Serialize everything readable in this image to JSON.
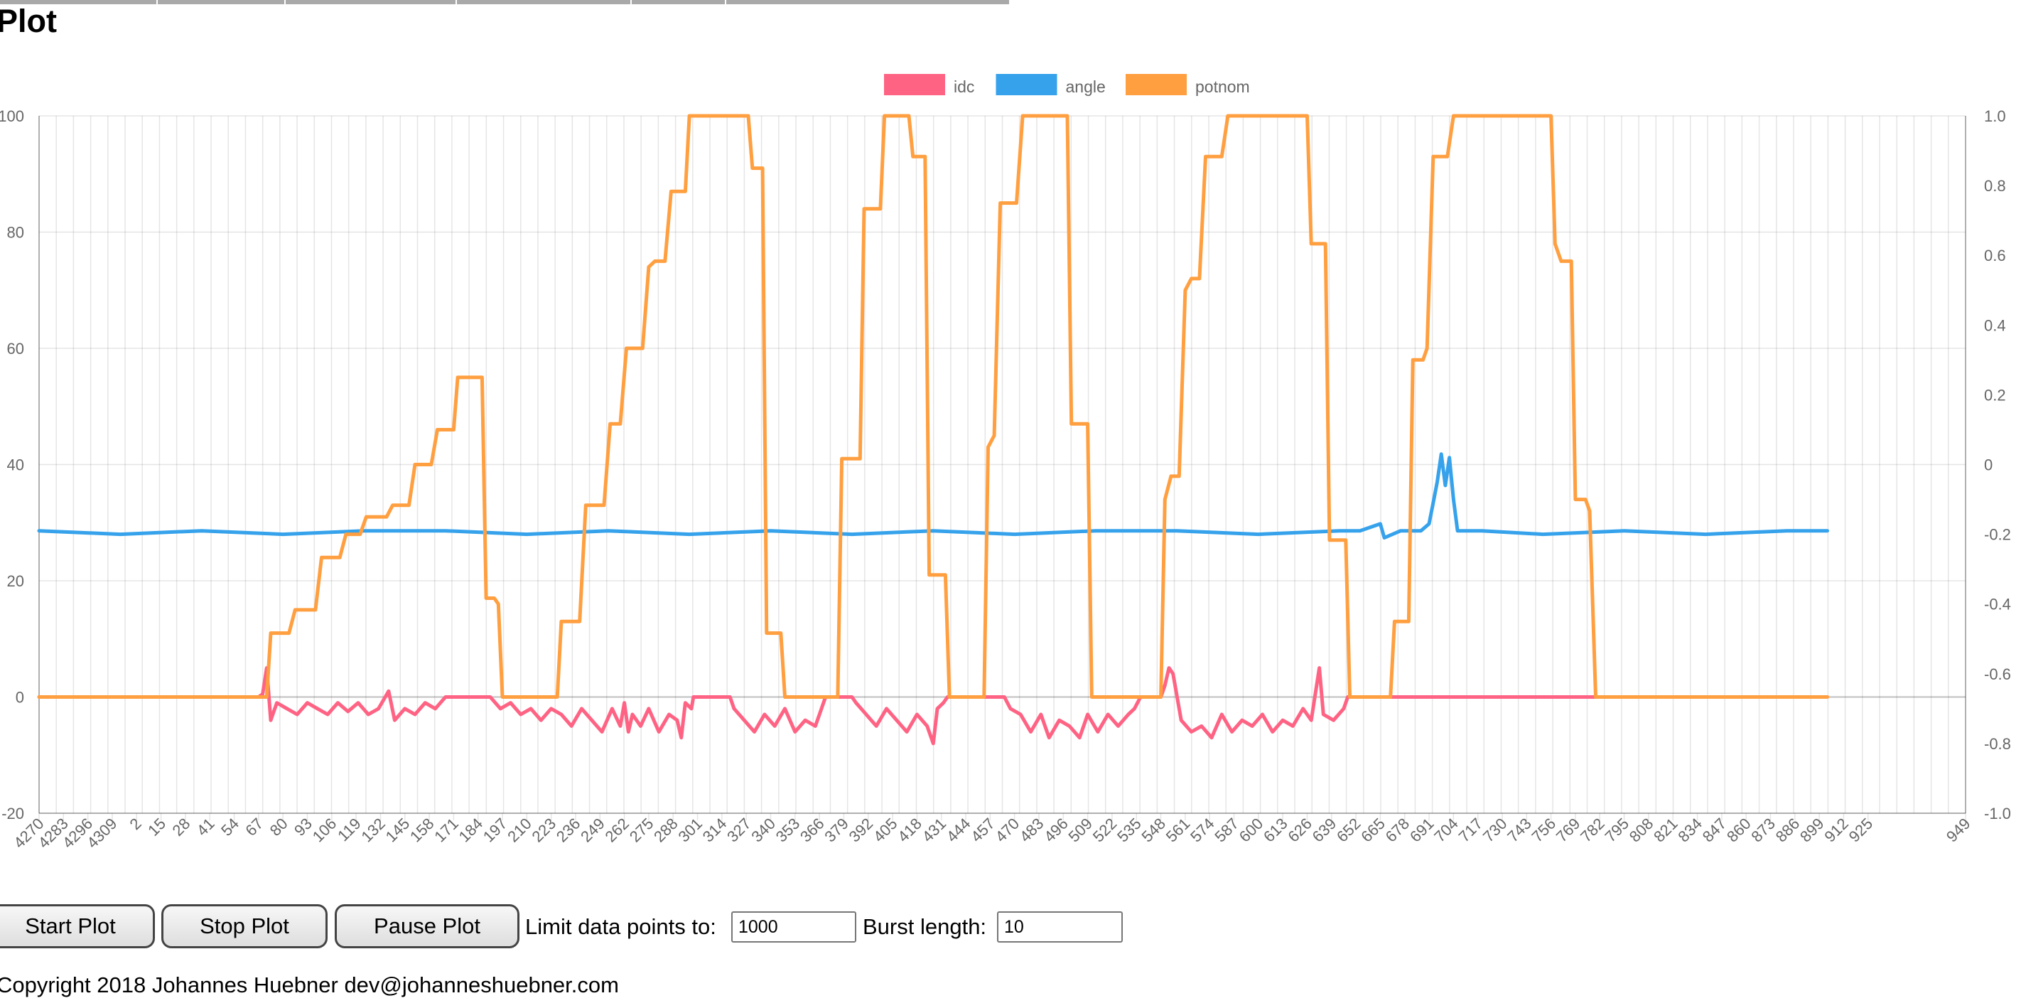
{
  "page": {
    "title": "Plot",
    "tabs": [
      "",
      "",
      "",
      "",
      ""
    ]
  },
  "controls": {
    "start_label": "Start Plot",
    "stop_label": "Stop Plot",
    "pause_label": "Pause Plot",
    "limit_label": "Limit data points to:",
    "limit_value": "1000",
    "burst_label": "Burst length:",
    "burst_value": "10"
  },
  "footer": {
    "text": "Copyright 2018 Johannes Huebner dev@johanneshuebner.com"
  },
  "chart_data": {
    "type": "line",
    "title": "",
    "legend_position": "top-center",
    "grid": true,
    "x_ticks": [
      "4270",
      "4283",
      "4296",
      "4309",
      "2",
      "15",
      "28",
      "41",
      "54",
      "67",
      "80",
      "93",
      "106",
      "119",
      "132",
      "145",
      "158",
      "171",
      "184",
      "197",
      "210",
      "223",
      "236",
      "249",
      "262",
      "275",
      "288",
      "301",
      "314",
      "327",
      "340",
      "353",
      "366",
      "379",
      "392",
      "405",
      "418",
      "431",
      "444",
      "457",
      "470",
      "483",
      "496",
      "509",
      "522",
      "535",
      "548",
      "561",
      "574",
      "587",
      "600",
      "613",
      "626",
      "639",
      "652",
      "665",
      "678",
      "691",
      "704",
      "717",
      "730",
      "743",
      "756",
      "769",
      "782",
      "795",
      "808",
      "821",
      "834",
      "847",
      "860",
      "873",
      "886",
      "899",
      "912",
      "925",
      "949"
    ],
    "x_range": [
      0,
      948
    ],
    "y_left": {
      "min": -20,
      "max": 100,
      "ticks": [
        "100",
        "80",
        "60",
        "40",
        "20",
        "0",
        "-20"
      ]
    },
    "y_right": {
      "min": -1.0,
      "max": 1.0,
      "ticks": [
        "1.0",
        "0.8",
        "0.6",
        "0.4",
        "0.2",
        "0",
        "-0.2",
        "-0.4",
        "-0.6",
        "-0.8",
        "-1.0"
      ]
    },
    "series": [
      {
        "name": "idc",
        "color": "#ff6384",
        "axis": "left",
        "points": [
          [
            0,
            0
          ],
          [
            108,
            0
          ],
          [
            110,
            0.5
          ],
          [
            112,
            5
          ],
          [
            114,
            -4
          ],
          [
            117,
            -1
          ],
          [
            122,
            -2
          ],
          [
            127,
            -3
          ],
          [
            132,
            -1
          ],
          [
            137,
            -2
          ],
          [
            142,
            -3
          ],
          [
            147,
            -1
          ],
          [
            152,
            -2.5
          ],
          [
            157,
            -1
          ],
          [
            162,
            -3
          ],
          [
            167,
            -2
          ],
          [
            172,
            1
          ],
          [
            175,
            -4
          ],
          [
            180,
            -2
          ],
          [
            185,
            -3
          ],
          [
            190,
            -1
          ],
          [
            195,
            -2
          ],
          [
            200,
            0
          ],
          [
            207,
            0
          ],
          [
            212,
            0
          ],
          [
            222,
            0
          ],
          [
            227,
            -2
          ],
          [
            232,
            -1
          ],
          [
            237,
            -3
          ],
          [
            242,
            -2
          ],
          [
            247,
            -4
          ],
          [
            252,
            -2
          ],
          [
            257,
            -3
          ],
          [
            262,
            -5
          ],
          [
            267,
            -2
          ],
          [
            272,
            -4
          ],
          [
            277,
            -6
          ],
          [
            282,
            -2
          ],
          [
            286,
            -5
          ],
          [
            288,
            -1
          ],
          [
            290,
            -6
          ],
          [
            292,
            -3
          ],
          [
            296,
            -5
          ],
          [
            300,
            -2
          ],
          [
            305,
            -6
          ],
          [
            310,
            -3
          ],
          [
            314,
            -4
          ],
          [
            316,
            -7
          ],
          [
            318,
            -1
          ],
          [
            321,
            -2
          ],
          [
            322,
            0
          ],
          [
            340,
            0
          ],
          [
            342,
            -2
          ],
          [
            347,
            -4
          ],
          [
            352,
            -6
          ],
          [
            357,
            -3
          ],
          [
            362,
            -5
          ],
          [
            367,
            -2
          ],
          [
            372,
            -6
          ],
          [
            377,
            -4
          ],
          [
            382,
            -5
          ],
          [
            385,
            -2
          ],
          [
            387,
            0
          ],
          [
            400,
            0
          ],
          [
            402,
            -1
          ],
          [
            407,
            -3
          ],
          [
            412,
            -5
          ],
          [
            417,
            -2
          ],
          [
            422,
            -4
          ],
          [
            427,
            -6
          ],
          [
            432,
            -3
          ],
          [
            437,
            -5
          ],
          [
            440,
            -8
          ],
          [
            442,
            -2
          ],
          [
            445,
            -1
          ],
          [
            447,
            0
          ],
          [
            475,
            0
          ],
          [
            478,
            -2
          ],
          [
            483,
            -3
          ],
          [
            488,
            -6
          ],
          [
            493,
            -3
          ],
          [
            497,
            -7
          ],
          [
            502,
            -4
          ],
          [
            507,
            -5
          ],
          [
            512,
            -7
          ],
          [
            516,
            -3
          ],
          [
            521,
            -6
          ],
          [
            526,
            -3
          ],
          [
            531,
            -5
          ],
          [
            536,
            -3
          ],
          [
            539,
            -2
          ],
          [
            542,
            0
          ],
          [
            551,
            0
          ],
          [
            552,
            0
          ],
          [
            554,
            2
          ],
          [
            556,
            5
          ],
          [
            558,
            4
          ],
          [
            562,
            -4
          ],
          [
            567,
            -6
          ],
          [
            572,
            -5
          ],
          [
            577,
            -7
          ],
          [
            582,
            -3
          ],
          [
            587,
            -6
          ],
          [
            592,
            -4
          ],
          [
            597,
            -5
          ],
          [
            602,
            -3
          ],
          [
            607,
            -6
          ],
          [
            612,
            -4
          ],
          [
            617,
            -5
          ],
          [
            622,
            -2
          ],
          [
            626,
            -4
          ],
          [
            630,
            5
          ],
          [
            632,
            -3
          ],
          [
            637,
            -4
          ],
          [
            642,
            -2
          ],
          [
            644,
            0
          ],
          [
            880,
            0
          ]
        ]
      },
      {
        "name": "angle",
        "color": "#36a2eb",
        "axis": "right",
        "points": [
          [
            0,
            -0.19
          ],
          [
            40,
            -0.2
          ],
          [
            80,
            -0.19
          ],
          [
            120,
            -0.2
          ],
          [
            160,
            -0.19
          ],
          [
            200,
            -0.19
          ],
          [
            240,
            -0.2
          ],
          [
            280,
            -0.19
          ],
          [
            320,
            -0.2
          ],
          [
            360,
            -0.19
          ],
          [
            400,
            -0.2
          ],
          [
            440,
            -0.19
          ],
          [
            480,
            -0.2
          ],
          [
            520,
            -0.19
          ],
          [
            560,
            -0.19
          ],
          [
            600,
            -0.2
          ],
          [
            640,
            -0.19
          ],
          [
            650,
            -0.19
          ],
          [
            660,
            -0.17
          ],
          [
            662,
            -0.21
          ],
          [
            670,
            -0.19
          ],
          [
            680,
            -0.19
          ],
          [
            684,
            -0.17
          ],
          [
            686,
            -0.11
          ],
          [
            688,
            -0.05
          ],
          [
            690,
            0.03
          ],
          [
            692,
            -0.06
          ],
          [
            694,
            0.02
          ],
          [
            696,
            -0.1
          ],
          [
            698,
            -0.19
          ],
          [
            710,
            -0.19
          ],
          [
            740,
            -0.2
          ],
          [
            780,
            -0.19
          ],
          [
            820,
            -0.2
          ],
          [
            860,
            -0.19
          ],
          [
            880,
            -0.19
          ]
        ]
      },
      {
        "name": "potnom",
        "color": "#ff9f40",
        "axis": "left",
        "points": [
          [
            0,
            0
          ],
          [
            112,
            0
          ],
          [
            114,
            11
          ],
          [
            123,
            11
          ],
          [
            126,
            15
          ],
          [
            136,
            15
          ],
          [
            139,
            24
          ],
          [
            148,
            24
          ],
          [
            151,
            28
          ],
          [
            158,
            28
          ],
          [
            161,
            31
          ],
          [
            171,
            31
          ],
          [
            174,
            33
          ],
          [
            182,
            33
          ],
          [
            185,
            40
          ],
          [
            193,
            40
          ],
          [
            196,
            46
          ],
          [
            204,
            46
          ],
          [
            206,
            55
          ],
          [
            218,
            55
          ],
          [
            220,
            17
          ],
          [
            224,
            17
          ],
          [
            226,
            16
          ],
          [
            228,
            0
          ],
          [
            255,
            0
          ],
          [
            257,
            13
          ],
          [
            266,
            13
          ],
          [
            269,
            33
          ],
          [
            278,
            33
          ],
          [
            281,
            47
          ],
          [
            286,
            47
          ],
          [
            289,
            60
          ],
          [
            297,
            60
          ],
          [
            300,
            74
          ],
          [
            303,
            75
          ],
          [
            308,
            75
          ],
          [
            311,
            87
          ],
          [
            318,
            87
          ],
          [
            320,
            100
          ],
          [
            349,
            100
          ],
          [
            351,
            91
          ],
          [
            356,
            91
          ],
          [
            358,
            11
          ],
          [
            365,
            11
          ],
          [
            367,
            0
          ],
          [
            393,
            0
          ],
          [
            395,
            41
          ],
          [
            404,
            41
          ],
          [
            406,
            84
          ],
          [
            414,
            84
          ],
          [
            416,
            100
          ],
          [
            428,
            100
          ],
          [
            430,
            93
          ],
          [
            436,
            93
          ],
          [
            438,
            21
          ],
          [
            446,
            21
          ],
          [
            448,
            0
          ],
          [
            465,
            0
          ],
          [
            467,
            43
          ],
          [
            470,
            45
          ],
          [
            473,
            85
          ],
          [
            481,
            85
          ],
          [
            484,
            100
          ],
          [
            506,
            100
          ],
          [
            508,
            47
          ],
          [
            516,
            47
          ],
          [
            518,
            0
          ],
          [
            552,
            0
          ],
          [
            554,
            34
          ],
          [
            557,
            38
          ],
          [
            561,
            38
          ],
          [
            564,
            70
          ],
          [
            567,
            72
          ],
          [
            571,
            72
          ],
          [
            574,
            93
          ],
          [
            582,
            93
          ],
          [
            585,
            100
          ],
          [
            624,
            100
          ],
          [
            626,
            78
          ],
          [
            633,
            78
          ],
          [
            635,
            27
          ],
          [
            643,
            27
          ],
          [
            645,
            0
          ],
          [
            665,
            0
          ],
          [
            667,
            13
          ],
          [
            674,
            13
          ],
          [
            676,
            58
          ],
          [
            681,
            58
          ],
          [
            683,
            60
          ],
          [
            686,
            93
          ],
          [
            693,
            93
          ],
          [
            696,
            100
          ],
          [
            744,
            100
          ],
          [
            746,
            78
          ],
          [
            749,
            75
          ],
          [
            754,
            75
          ],
          [
            756,
            34
          ],
          [
            761,
            34
          ],
          [
            763,
            32
          ],
          [
            766,
            0
          ],
          [
            880,
            0
          ]
        ]
      }
    ]
  }
}
